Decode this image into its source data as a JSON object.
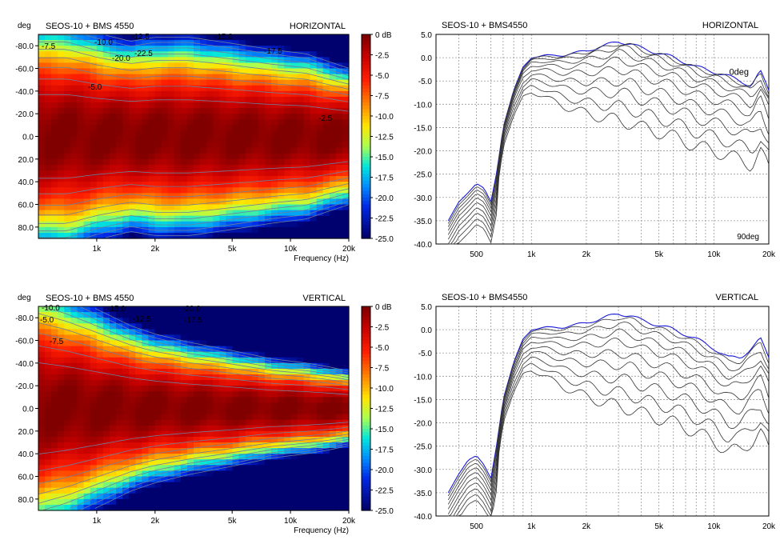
{
  "chart_data": [
    {
      "type": "heatmap",
      "title": "SEOS-10 + BMS 4550",
      "plane_label": "HORIZONTAL",
      "xlabel": "Frequency (Hz)",
      "ylabel": "deg",
      "xscale": "log",
      "xlim": [
        500,
        20000
      ],
      "ylim": [
        -90,
        90
      ],
      "y_ticks": [
        "-80.0",
        "-60.0",
        "-40.0",
        "-20.0",
        "0.0",
        "20.0",
        "40.0",
        "60.0",
        "80.0"
      ],
      "x_ticks": [
        "1k",
        "2k",
        "5k",
        "10k",
        "20k"
      ],
      "colorbar_ticks": [
        "0 dB",
        "-2.5",
        "-5.0",
        "-7.5",
        "-10.0",
        "-12.5",
        "-15.0",
        "-17.5",
        "-20.0",
        "-22.5",
        "-25.0"
      ],
      "zlim": [
        -25,
        0
      ],
      "contour_labels": [
        "-7.5",
        "-10.0",
        "-12.5",
        "-15.0",
        "-20.0",
        "-22.5",
        "-17.5",
        "-5.0",
        "-2.5"
      ],
      "beamwidth_profile_freqs": [
        500,
        700,
        1000,
        1500,
        2000,
        3000,
        5000,
        8000,
        12000,
        16000,
        20000
      ],
      "beamwidth_profile_deg": [
        55,
        55,
        50,
        46,
        48,
        48,
        45,
        42,
        40,
        36,
        33
      ]
    },
    {
      "type": "line",
      "title": "SEOS-10 + BMS4550",
      "plane_label": "HORIZONTAL",
      "xscale": "log",
      "xlim": [
        300,
        20000
      ],
      "ylim": [
        -40,
        5
      ],
      "y_ticks": [
        "5.0",
        "0.0",
        "-5.0",
        "-10.0",
        "-15.0",
        "-20.0",
        "-25.0",
        "-30.0",
        "-35.0",
        "-40.0"
      ],
      "x_ticks": [
        "500",
        "1k",
        "2k",
        "5k",
        "10k",
        "20k"
      ],
      "labels": {
        "top_curve": "0deg",
        "bottom_curve": "90deg"
      },
      "x": [
        350,
        400,
        450,
        500,
        550,
        600,
        650,
        700,
        800,
        900,
        1000,
        1200,
        1500,
        2000,
        2500,
        3000,
        3500,
        4000,
        5000,
        6000,
        7000,
        8000,
        10000,
        12000,
        14000,
        16000,
        18000,
        20000
      ],
      "base_curve": [
        -35,
        -31,
        -29,
        -27,
        -28,
        -31,
        -24,
        -15,
        -7,
        -2,
        0,
        0.5,
        0.5,
        1.5,
        2.5,
        3.5,
        3,
        2,
        1,
        0,
        -1,
        -2,
        -3,
        -4,
        -5,
        -6,
        -3,
        -7
      ],
      "series": [
        {
          "angle": 0,
          "offset_db": 0
        },
        {
          "angle": 10,
          "offset_db": -0.4
        },
        {
          "angle": 20,
          "offset_db": -1.2
        },
        {
          "angle": 30,
          "offset_db": -2.4
        },
        {
          "angle": 40,
          "offset_db": -4
        },
        {
          "angle": 50,
          "offset_db": -6
        },
        {
          "angle": 60,
          "offset_db": -8.5
        },
        {
          "angle": 70,
          "offset_db": -11
        },
        {
          "angle": 80,
          "offset_db": -14
        },
        {
          "angle": 90,
          "offset_db": -17
        }
      ]
    },
    {
      "type": "heatmap",
      "title": "SEOS-10 + BMS 4550",
      "plane_label": "VERTICAL",
      "xlabel": "Frequency (Hz)",
      "ylabel": "deg",
      "xscale": "log",
      "xlim": [
        500,
        20000
      ],
      "ylim": [
        -90,
        90
      ],
      "y_ticks": [
        "-80.0",
        "-60.0",
        "-40.0",
        "-20.0",
        "0.0",
        "20.0",
        "40.0",
        "60.0",
        "80.0"
      ],
      "x_ticks": [
        "1k",
        "2k",
        "5k",
        "10k",
        "20k"
      ],
      "colorbar_ticks": [
        "0 dB",
        "-2.5",
        "-5.0",
        "-7.5",
        "-10.0",
        "-12.5",
        "-15.0",
        "-17.5",
        "-20.0",
        "-22.5",
        "-25.0"
      ],
      "zlim": [
        -25,
        0
      ],
      "contour_labels": [
        "-10.0",
        "-5.0",
        "-7.5",
        "-15.0",
        "-12.5",
        "-20.0",
        "-17.5"
      ],
      "beamwidth_profile_freqs": [
        500,
        700,
        1000,
        1500,
        2000,
        3000,
        5000,
        8000,
        12000,
        16000,
        20000
      ],
      "beamwidth_profile_deg": [
        60,
        55,
        48,
        40,
        36,
        32,
        28,
        24,
        22,
        20,
        18
      ]
    },
    {
      "type": "line",
      "title": "SEOS-10 + BMS4550",
      "plane_label": "VERTICAL",
      "xscale": "log",
      "xlim": [
        300,
        20000
      ],
      "ylim": [
        -40,
        5
      ],
      "y_ticks": [
        "5.0",
        "0.0",
        "-5.0",
        "-10.0",
        "-15.0",
        "-20.0",
        "-25.0",
        "-30.0",
        "-35.0",
        "-40.0"
      ],
      "x_ticks": [
        "500",
        "1k",
        "2k",
        "5k",
        "10k",
        "20k"
      ],
      "labels": {
        "top_curve": "",
        "bottom_curve": ""
      },
      "x": [
        350,
        400,
        450,
        500,
        550,
        600,
        650,
        700,
        800,
        900,
        1000,
        1200,
        1500,
        2000,
        2500,
        3000,
        3500,
        4000,
        5000,
        6000,
        7000,
        8000,
        10000,
        12000,
        14000,
        16000,
        18000,
        20000
      ],
      "base_curve": [
        -35,
        -31,
        -28,
        -27,
        -29,
        -32,
        -24,
        -15,
        -7,
        -2,
        0,
        0.5,
        0.5,
        1.5,
        2.5,
        3.5,
        3,
        2,
        1,
        0,
        -1,
        -2,
        -4,
        -6,
        -6,
        -4,
        -2,
        -6
      ],
      "series": [
        {
          "angle": 0,
          "offset_db": 0
        },
        {
          "angle": 10,
          "offset_db": -0.8
        },
        {
          "angle": 20,
          "offset_db": -2.2
        },
        {
          "angle": 30,
          "offset_db": -4
        },
        {
          "angle": 40,
          "offset_db": -6
        },
        {
          "angle": 50,
          "offset_db": -8.5
        },
        {
          "angle": 60,
          "offset_db": -11
        },
        {
          "angle": 70,
          "offset_db": -14
        },
        {
          "angle": 80,
          "offset_db": -17
        },
        {
          "angle": 90,
          "offset_db": -20
        }
      ]
    }
  ]
}
